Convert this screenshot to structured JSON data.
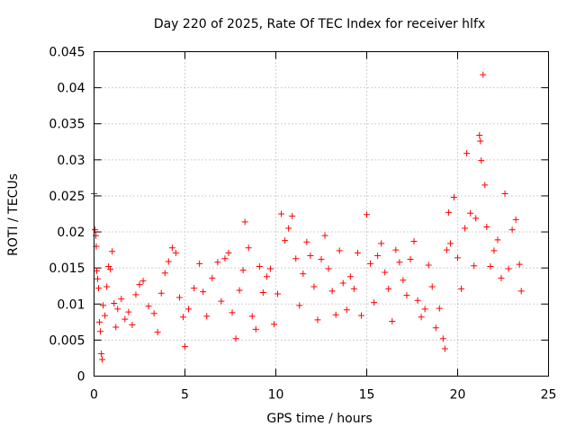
{
  "chart_data": {
    "type": "scatter",
    "title": "Day 220 of 2025, Rate Of TEC Index for receiver hlfx",
    "xlabel": "GPS time / hours",
    "ylabel": "ROTI / TECUs",
    "xlim": [
      0,
      25
    ],
    "ylim": [
      0,
      0.045
    ],
    "x_ticks": [
      "0",
      "5",
      "10",
      "15",
      "20",
      "25"
    ],
    "y_ticks": [
      "0",
      "0.005",
      "0.01",
      "0.015",
      "0.02",
      "0.025",
      "0.03",
      "0.035",
      "0.04",
      "0.045"
    ],
    "grid": true,
    "marker": "+",
    "color": "#ff0000",
    "series": [
      {
        "points": [
          [
            0.0,
            0.0253
          ],
          [
            0.05,
            0.0203
          ],
          [
            0.1,
            0.0195
          ],
          [
            0.12,
            0.018
          ],
          [
            0.15,
            0.0146
          ],
          [
            0.2,
            0.0135
          ],
          [
            0.25,
            0.0122
          ],
          [
            0.3,
            0.0075
          ],
          [
            0.35,
            0.0062
          ],
          [
            0.4,
            0.0031
          ],
          [
            0.45,
            0.0023
          ],
          [
            0.5,
            0.0098
          ],
          [
            0.6,
            0.0084
          ],
          [
            0.7,
            0.0124
          ],
          [
            0.8,
            0.0152
          ],
          [
            0.9,
            0.0148
          ],
          [
            1.0,
            0.0173
          ],
          [
            1.1,
            0.0101
          ],
          [
            1.2,
            0.0068
          ],
          [
            1.3,
            0.0093
          ],
          [
            1.5,
            0.0107
          ],
          [
            1.7,
            0.0079
          ],
          [
            1.9,
            0.0089
          ],
          [
            2.1,
            0.0071
          ],
          [
            2.3,
            0.0113
          ],
          [
            2.5,
            0.0127
          ],
          [
            2.7,
            0.0132
          ],
          [
            3.0,
            0.0097
          ],
          [
            3.3,
            0.0087
          ],
          [
            3.5,
            0.0061
          ],
          [
            3.7,
            0.0115
          ],
          [
            3.9,
            0.0143
          ],
          [
            4.1,
            0.0159
          ],
          [
            4.3,
            0.0178
          ],
          [
            4.5,
            0.0171
          ],
          [
            4.7,
            0.0109
          ],
          [
            4.9,
            0.0082
          ],
          [
            5.0,
            0.0041
          ],
          [
            5.2,
            0.0093
          ],
          [
            5.5,
            0.0122
          ],
          [
            5.8,
            0.0156
          ],
          [
            6.0,
            0.0117
          ],
          [
            6.2,
            0.0083
          ],
          [
            6.5,
            0.0136
          ],
          [
            6.8,
            0.0158
          ],
          [
            7.0,
            0.0104
          ],
          [
            7.2,
            0.0163
          ],
          [
            7.4,
            0.0171
          ],
          [
            7.6,
            0.0088
          ],
          [
            7.8,
            0.0052
          ],
          [
            8.0,
            0.0119
          ],
          [
            8.2,
            0.0147
          ],
          [
            8.3,
            0.0214
          ],
          [
            8.5,
            0.0178
          ],
          [
            8.7,
            0.0083
          ],
          [
            8.9,
            0.0065
          ],
          [
            9.1,
            0.0152
          ],
          [
            9.3,
            0.0116
          ],
          [
            9.5,
            0.0138
          ],
          [
            9.7,
            0.0149
          ],
          [
            9.9,
            0.0072
          ],
          [
            10.1,
            0.0114
          ],
          [
            10.3,
            0.0225
          ],
          [
            10.5,
            0.0188
          ],
          [
            10.7,
            0.0205
          ],
          [
            10.9,
            0.0222
          ],
          [
            11.1,
            0.0163
          ],
          [
            11.3,
            0.0098
          ],
          [
            11.5,
            0.0142
          ],
          [
            11.7,
            0.0186
          ],
          [
            11.9,
            0.0167
          ],
          [
            12.1,
            0.0124
          ],
          [
            12.3,
            0.0078
          ],
          [
            12.5,
            0.0162
          ],
          [
            12.7,
            0.0195
          ],
          [
            12.9,
            0.0149
          ],
          [
            13.1,
            0.0118
          ],
          [
            13.3,
            0.0085
          ],
          [
            13.5,
            0.0174
          ],
          [
            13.7,
            0.0129
          ],
          [
            13.9,
            0.0092
          ],
          [
            14.1,
            0.0138
          ],
          [
            14.3,
            0.0121
          ],
          [
            14.5,
            0.0171
          ],
          [
            14.7,
            0.0084
          ],
          [
            15.0,
            0.0224
          ],
          [
            15.2,
            0.0156
          ],
          [
            15.4,
            0.0102
          ],
          [
            15.6,
            0.0167
          ],
          [
            15.8,
            0.0184
          ],
          [
            16.0,
            0.0144
          ],
          [
            16.2,
            0.0121
          ],
          [
            16.4,
            0.0076
          ],
          [
            16.6,
            0.0175
          ],
          [
            16.8,
            0.0158
          ],
          [
            17.0,
            0.0133
          ],
          [
            17.2,
            0.0112
          ],
          [
            17.4,
            0.0162
          ],
          [
            17.6,
            0.0187
          ],
          [
            17.8,
            0.0105
          ],
          [
            18.0,
            0.0082
          ],
          [
            18.2,
            0.0093
          ],
          [
            18.4,
            0.0154
          ],
          [
            18.6,
            0.0124
          ],
          [
            18.8,
            0.0067
          ],
          [
            19.0,
            0.0094
          ],
          [
            19.2,
            0.0052
          ],
          [
            19.3,
            0.0038
          ],
          [
            19.4,
            0.0175
          ],
          [
            19.5,
            0.0227
          ],
          [
            19.6,
            0.0184
          ],
          [
            19.8,
            0.0248
          ],
          [
            20.0,
            0.0164
          ],
          [
            20.2,
            0.0121
          ],
          [
            20.4,
            0.0205
          ],
          [
            20.5,
            0.0309
          ],
          [
            20.7,
            0.0226
          ],
          [
            20.9,
            0.0153
          ],
          [
            21.0,
            0.0219
          ],
          [
            21.2,
            0.0334
          ],
          [
            21.25,
            0.0326
          ],
          [
            21.3,
            0.0299
          ],
          [
            21.4,
            0.0418
          ],
          [
            21.5,
            0.0265
          ],
          [
            21.6,
            0.0207
          ],
          [
            21.8,
            0.0152
          ],
          [
            22.0,
            0.0174
          ],
          [
            22.2,
            0.0189
          ],
          [
            22.4,
            0.0136
          ],
          [
            22.6,
            0.0253
          ],
          [
            22.8,
            0.0149
          ],
          [
            23.0,
            0.0203
          ],
          [
            23.2,
            0.0217
          ],
          [
            23.4,
            0.0155
          ],
          [
            23.5,
            0.0118
          ]
        ]
      }
    ]
  }
}
